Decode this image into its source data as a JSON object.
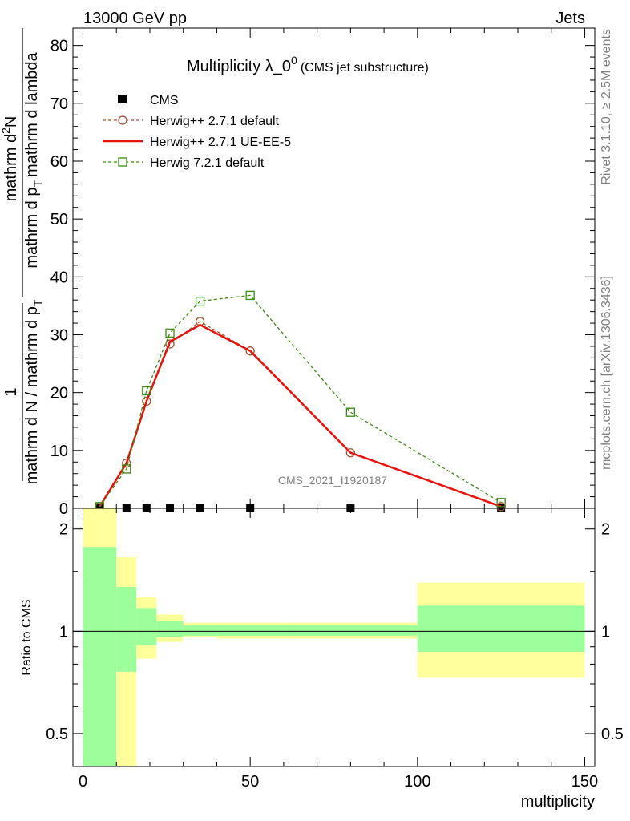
{
  "header": {
    "left": "13000 GeV pp",
    "right": "Jets"
  },
  "side_labels": {
    "rivet": "Rivet 3.1.10, ≥ 2.5M events",
    "mcplots": "mcplots.cern.ch [arXiv:1306.3436]"
  },
  "chart_data": [
    {
      "type": "line",
      "title_main": "Multiplicity λ_0",
      "title_sup": "0",
      "title_sub": "(CMS jet substructure)",
      "analysis_tag": "CMS_2021_I1920187",
      "ylabel_num": "1",
      "ylabel_den": "mathrm d N / mathrm d p",
      "ylabel_den_sub": "T",
      "ylabel_num2": "mathrm d",
      "ylabel_num2_sup": "2",
      "ylabel_num2_rest": "N",
      "ylabel_den2": "mathrm d p",
      "ylabel_den2_sub": "T",
      "ylabel_den2_rest": "mathrm d lambda",
      "xlim": [
        -3,
        153
      ],
      "ylim": [
        0,
        83
      ],
      "yticks": [
        0,
        10,
        20,
        30,
        40,
        50,
        60,
        70,
        80
      ],
      "grid": false,
      "legend_position": "top-left",
      "series": [
        {
          "name": "CMS",
          "color": "#000000",
          "marker": "filled-square",
          "x": [
            5,
            13,
            19,
            26,
            35,
            50,
            80,
            125
          ],
          "y": [
            0.05,
            0.05,
            0.05,
            0.05,
            0.05,
            0.05,
            0.05,
            0.05
          ]
        },
        {
          "name": "Herwig++ 2.7.1 default",
          "color": "#a0522d",
          "marker": "open-circle",
          "dash": true,
          "x": [
            5,
            13,
            19,
            26,
            35,
            50,
            80,
            125
          ],
          "y": [
            0.3,
            7.8,
            18.5,
            28.4,
            32.3,
            27.2,
            9.6,
            0.3
          ]
        },
        {
          "name": "Herwig++ 2.7.1 UE-EE-5",
          "color": "#e8120c",
          "marker": "none",
          "dash": false,
          "x": [
            5,
            13,
            19,
            26,
            35,
            50,
            80,
            125
          ],
          "y": [
            0.3,
            7.8,
            18.5,
            28.8,
            31.7,
            27.2,
            9.6,
            0.3
          ]
        },
        {
          "name": "Herwig 7.2.1 default",
          "color": "#3a8c12",
          "marker": "open-square",
          "dash": true,
          "x": [
            5,
            13,
            19,
            26,
            35,
            50,
            80,
            125
          ],
          "y": [
            0.3,
            6.8,
            20.3,
            30.3,
            35.8,
            36.8,
            16.6,
            1.0
          ]
        }
      ]
    },
    {
      "type": "area",
      "ylabel": "Ratio to CMS",
      "xlabel": "multiplicity",
      "xlim": [
        -3,
        153
      ],
      "ylim": [
        0.4,
        2.3
      ],
      "log_scale_y": true,
      "yticks": [
        0.5,
        1,
        2
      ],
      "xticks": [
        0,
        50,
        100,
        150
      ],
      "reference_line": 1,
      "bands": {
        "bins": [
          [
            0,
            10
          ],
          [
            10,
            16
          ],
          [
            16,
            22
          ],
          [
            22,
            30
          ],
          [
            30,
            40
          ],
          [
            40,
            60
          ],
          [
            60,
            100
          ],
          [
            100,
            150
          ]
        ],
        "inner_color": "#9cff9c",
        "outer_color": "#ffff9c",
        "inner_lo": [
          0.36,
          0.76,
          0.91,
          0.96,
          0.97,
          0.97,
          0.97,
          0.87
        ],
        "inner_hi": [
          1.77,
          1.35,
          1.17,
          1.07,
          1.04,
          1.04,
          1.04,
          1.19
        ],
        "outer_lo": [
          0.36,
          0.38,
          0.83,
          0.93,
          0.96,
          0.95,
          0.95,
          0.73
        ],
        "outer_hi": [
          2.3,
          1.65,
          1.26,
          1.12,
          1.06,
          1.06,
          1.06,
          1.39
        ]
      }
    }
  ]
}
